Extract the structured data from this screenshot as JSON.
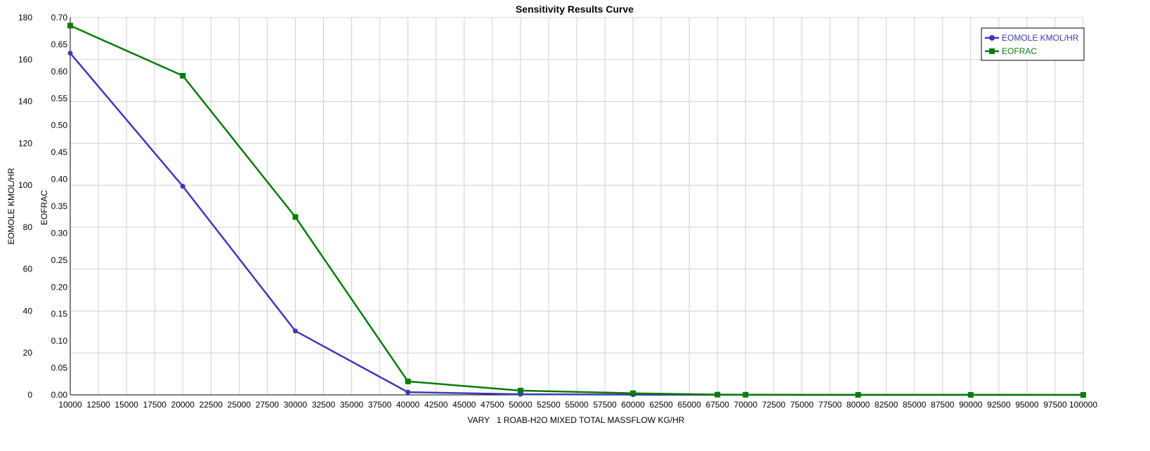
{
  "chart_data": {
    "type": "line",
    "title": "Sensitivity Results Curve",
    "xlabel": "VARY   1 ROAB-H2O MIXED TOTAL MASSFLOW KG/HR",
    "xlim": [
      10000,
      100000
    ],
    "xticks": [
      10000,
      12500,
      15000,
      17500,
      20000,
      22500,
      25000,
      27500,
      30000,
      32500,
      35000,
      37500,
      40000,
      42500,
      45000,
      47500,
      50000,
      52500,
      55000,
      57500,
      60000,
      62500,
      65000,
      67500,
      70000,
      72500,
      75000,
      77500,
      80000,
      82500,
      85000,
      87500,
      90000,
      92500,
      95000,
      97500,
      100000
    ],
    "y_left": {
      "label": "EOMOLE KMOL/HR",
      "lim": [
        0,
        180
      ],
      "ticks": [
        "0",
        "20",
        "40",
        "60",
        "80",
        "100",
        "120",
        "140",
        "160",
        "180"
      ]
    },
    "y_right_inner": {
      "label": "EOFRAC",
      "lim": [
        0,
        0.7
      ],
      "ticks": [
        "0.00",
        "0.05",
        "0.10",
        "0.15",
        "0.20",
        "0.25",
        "0.30",
        "0.35",
        "0.40",
        "0.45",
        "0.50",
        "0.55",
        "0.60",
        "0.65",
        "0.70"
      ]
    },
    "grid": true,
    "legend_position": "top-right",
    "series": [
      {
        "name": "EOMOLE KMOL/HR",
        "axis": "left",
        "marker": "circle",
        "color": "#3a3ab8",
        "x": [
          10000,
          20000,
          30000,
          40000,
          50000,
          60000,
          67500,
          70000,
          80000,
          90000,
          100000
        ],
        "y": [
          163,
          99.5,
          30.5,
          1.3,
          0.3,
          0.1,
          0.05,
          0.03,
          0.01,
          0.01,
          0.0
        ]
      },
      {
        "name": "EOFRAC",
        "axis": "right",
        "marker": "square",
        "color": "#0a7a0a",
        "x": [
          10000,
          20000,
          30000,
          40000,
          50000,
          60000,
          67500,
          70000,
          80000,
          90000,
          100000
        ],
        "y": [
          0.685,
          0.592,
          0.33,
          0.025,
          0.008,
          0.003,
          0.0005,
          0.0003,
          0.0001,
          0.0001,
          0.0
        ]
      }
    ]
  }
}
